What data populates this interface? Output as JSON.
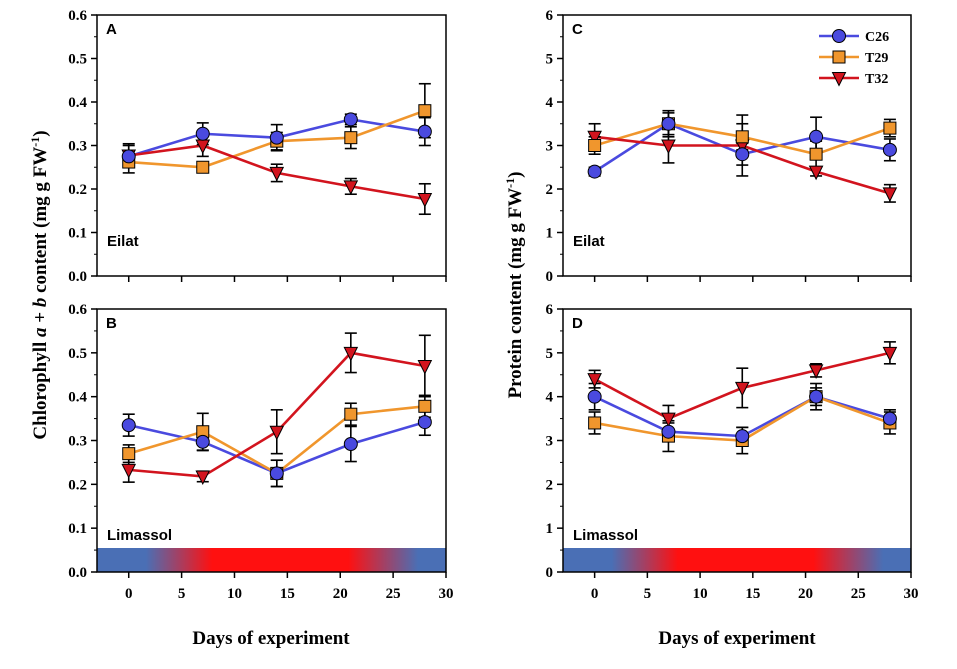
{
  "figure": {
    "ylabel_left_pre": "Chlorophyll ",
    "ylabel_left_a": "a",
    "ylabel_left_mid": " + ",
    "ylabel_left_b": "b",
    "ylabel_left_post": " content (mg g FW",
    "ylabel_right_pre": "Protein content (mg g FW",
    "ylabel_sup": "-1",
    "ylabel_close": ")",
    "xlabel": "Days of experiment",
    "x_ticks": [
      "0",
      "5",
      "10",
      "15",
      "20",
      "25",
      "30"
    ],
    "chl_ticks": [
      "0.0",
      "0.1",
      "0.2",
      "0.3",
      "0.4",
      "0.5",
      "0.6"
    ],
    "prot_ticks": [
      "0",
      "1",
      "2",
      "3",
      "4",
      "5",
      "6"
    ]
  },
  "legend": {
    "items": [
      {
        "name": "C26",
        "color": "#4a4adf",
        "marker": "circle"
      },
      {
        "name": "T29",
        "color": "#f0962d",
        "marker": "square"
      },
      {
        "name": "T32",
        "color": "#d2141e",
        "marker": "triangle-down"
      }
    ]
  },
  "colors": {
    "C26": "#4a4adf",
    "T29": "#f0962d",
    "T32": "#d2141e",
    "bar_cool": "#4a6fb5",
    "bar_hot": "#ff1010"
  },
  "chart_data": [
    {
      "panel": "A",
      "site": "Eilat",
      "type": "line",
      "x": [
        0,
        7,
        14,
        21,
        28
      ],
      "xlim": [
        -3,
        30
      ],
      "ylim": [
        0,
        0.6
      ],
      "series": [
        {
          "name": "C26",
          "values": [
            0.275,
            0.327,
            0.318,
            0.36,
            0.332
          ],
          "errors": [
            0.025,
            0.025,
            0.03,
            0.012,
            0.032
          ]
        },
        {
          "name": "T29",
          "values": [
            0.262,
            0.25,
            0.31,
            0.318,
            0.38
          ],
          "errors": [
            0.025,
            0.012,
            0.02,
            0.025,
            0.062
          ]
        },
        {
          "name": "T32",
          "values": [
            0.277,
            0.3,
            0.237,
            0.206,
            0.177
          ],
          "errors": [
            0.027,
            0.025,
            0.02,
            0.018,
            0.035
          ]
        }
      ]
    },
    {
      "panel": "B",
      "site": "Limassol",
      "type": "line",
      "x": [
        0,
        7,
        14,
        21,
        28
      ],
      "xlim": [
        -3,
        30
      ],
      "ylim": [
        0,
        0.6
      ],
      "series": [
        {
          "name": "C26",
          "values": [
            0.335,
            0.297,
            0.225,
            0.292,
            0.342
          ],
          "errors": [
            0.025,
            0.02,
            0.03,
            0.04,
            0.03
          ]
        },
        {
          "name": "T29",
          "values": [
            0.27,
            0.32,
            0.225,
            0.36,
            0.378
          ],
          "errors": [
            0.02,
            0.042,
            0.03,
            0.025,
            0.025
          ]
        },
        {
          "name": "T32",
          "values": [
            0.233,
            0.218,
            0.32,
            0.5,
            0.47
          ],
          "errors": [
            0.028,
            0.012,
            0.05,
            0.045,
            0.07
          ]
        }
      ]
    },
    {
      "panel": "C",
      "site": "Eilat",
      "type": "line",
      "x": [
        0,
        7,
        14,
        21,
        28
      ],
      "xlim": [
        -3,
        30
      ],
      "ylim": [
        0,
        6
      ],
      "series": [
        {
          "name": "C26",
          "values": [
            2.4,
            3.5,
            2.8,
            3.2,
            2.9
          ],
          "errors": [
            0.1,
            0.3,
            0.25,
            0.45,
            0.25
          ]
        },
        {
          "name": "T29",
          "values": [
            3.0,
            3.5,
            3.2,
            2.8,
            3.4
          ],
          "errors": [
            0.2,
            0.25,
            0.3,
            0.3,
            0.2
          ]
        },
        {
          "name": "T32",
          "values": [
            3.2,
            3.0,
            3.0,
            2.4,
            1.9
          ],
          "errors": [
            0.3,
            0.4,
            0.7,
            0.1,
            0.2
          ]
        }
      ]
    },
    {
      "panel": "D",
      "site": "Limassol",
      "type": "line",
      "x": [
        0,
        7,
        14,
        21,
        28
      ],
      "xlim": [
        -3,
        30
      ],
      "ylim": [
        0,
        6
      ],
      "series": [
        {
          "name": "C26",
          "values": [
            4.0,
            3.2,
            3.1,
            4.0,
            3.5
          ],
          "errors": [
            0.3,
            0.2,
            0.2,
            0.2,
            0.2
          ]
        },
        {
          "name": "T29",
          "values": [
            3.4,
            3.1,
            3.0,
            4.0,
            3.4
          ],
          "errors": [
            0.25,
            0.35,
            0.3,
            0.3,
            0.25
          ]
        },
        {
          "name": "T32",
          "values": [
            4.4,
            3.5,
            4.2,
            4.6,
            5.0
          ],
          "errors": [
            0.2,
            0.3,
            0.45,
            0.15,
            0.25
          ]
        }
      ]
    }
  ]
}
